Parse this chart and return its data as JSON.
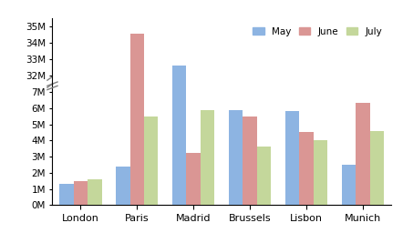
{
  "categories": [
    "London",
    "Paris",
    "Madrid",
    "Brussels",
    "Lisbon",
    "Munich"
  ],
  "may": [
    1300000,
    2400000,
    32600000,
    5900000,
    5800000,
    2500000
  ],
  "june": [
    1500000,
    34600000,
    3200000,
    5500000,
    4500000,
    6300000
  ],
  "july": [
    1600000,
    5500000,
    5900000,
    3600000,
    4000000,
    4600000
  ],
  "may_color": "#8db4e2",
  "june_color": "#da9694",
  "july_color": "#c4d79b",
  "lower_ylim": [
    0,
    7500000
  ],
  "upper_ylim": [
    31500000,
    35500000
  ],
  "lower_yticks": [
    0,
    1000000,
    2000000,
    3000000,
    4000000,
    5000000,
    6000000,
    7000000
  ],
  "upper_yticks": [
    32000000,
    33000000,
    34000000,
    35000000
  ],
  "lower_ytick_labels": [
    "0M",
    "1M",
    "2M",
    "3M",
    "4M",
    "5M",
    "6M",
    "7M"
  ],
  "upper_ytick_labels": [
    "32M",
    "33M",
    "34M",
    "35M"
  ],
  "legend_labels": [
    "May",
    "June",
    "July"
  ],
  "bar_width": 0.25,
  "background_color": "#ffffff"
}
